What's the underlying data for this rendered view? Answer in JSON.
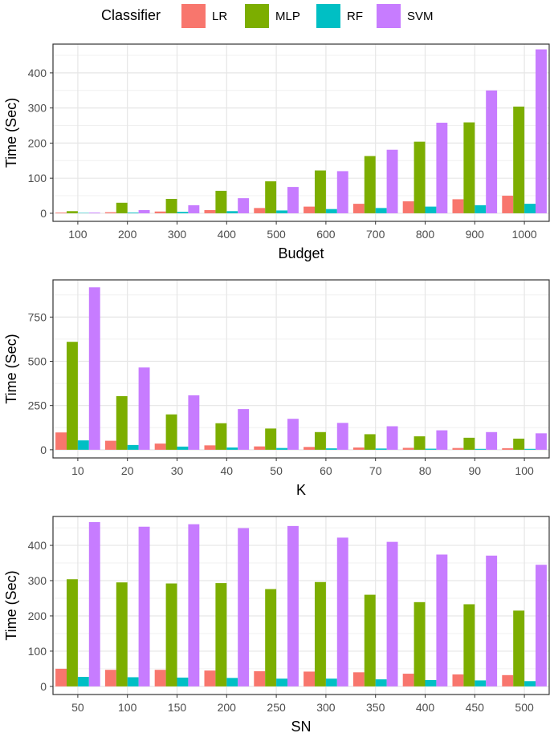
{
  "legend": {
    "title": "Classifier",
    "entries": [
      {
        "name": "LR",
        "color": "#F8766D"
      },
      {
        "name": "MLP",
        "color": "#7CAE00"
      },
      {
        "name": "RF",
        "color": "#00BFC4"
      },
      {
        "name": "SVM",
        "color": "#C77CFF"
      }
    ]
  },
  "chart_data": [
    {
      "type": "bar",
      "xlabel": "Budget",
      "ylabel": "Time (Sec)",
      "categories": [
        "100",
        "200",
        "300",
        "400",
        "500",
        "600",
        "700",
        "800",
        "900",
        "1000"
      ],
      "ylim": [
        -23,
        482
      ],
      "yticks": [
        0,
        100,
        200,
        300,
        400
      ],
      "series": [
        {
          "name": "LR",
          "values": [
            2,
            3,
            5,
            9,
            15,
            19,
            27,
            34,
            40,
            50
          ]
        },
        {
          "name": "MLP",
          "values": [
            6,
            30,
            41,
            64,
            91,
            122,
            163,
            204,
            259,
            304
          ]
        },
        {
          "name": "RF",
          "values": [
            1,
            2,
            4,
            6,
            8,
            12,
            15,
            19,
            23,
            27
          ]
        },
        {
          "name": "SVM",
          "values": [
            2,
            9,
            23,
            43,
            75,
            120,
            181,
            258,
            350,
            467
          ]
        }
      ]
    },
    {
      "type": "bar",
      "xlabel": "K",
      "ylabel": "Time (Sec)",
      "categories": [
        "10",
        "20",
        "30",
        "40",
        "50",
        "60",
        "70",
        "80",
        "90",
        "100"
      ],
      "ylim": [
        -46,
        960
      ],
      "yticks": [
        0,
        250,
        500,
        750
      ],
      "series": [
        {
          "name": "LR",
          "values": [
            98,
            51,
            35,
            25,
            19,
            16,
            13,
            11,
            10,
            9
          ]
        },
        {
          "name": "MLP",
          "values": [
            610,
            303,
            200,
            150,
            120,
            100,
            88,
            76,
            68,
            63
          ]
        },
        {
          "name": "RF",
          "values": [
            53,
            27,
            18,
            13,
            10,
            8,
            7,
            6,
            5,
            5
          ]
        },
        {
          "name": "SVM",
          "values": [
            918,
            465,
            308,
            230,
            175,
            152,
            133,
            110,
            100,
            93
          ]
        }
      ]
    },
    {
      "type": "bar",
      "xlabel": "SN",
      "ylabel": "Time (Sec)",
      "categories": [
        "50",
        "100",
        "150",
        "200",
        "250",
        "300",
        "350",
        "400",
        "450",
        "500"
      ],
      "ylim": [
        -23,
        482
      ],
      "yticks": [
        0,
        100,
        200,
        300,
        400
      ],
      "series": [
        {
          "name": "LR",
          "values": [
            50,
            47,
            47,
            45,
            43,
            42,
            40,
            36,
            34,
            32
          ]
        },
        {
          "name": "MLP",
          "values": [
            304,
            295,
            292,
            293,
            276,
            296,
            260,
            239,
            233,
            215
          ]
        },
        {
          "name": "RF",
          "values": [
            27,
            26,
            25,
            24,
            22,
            22,
            20,
            18,
            17,
            15
          ]
        },
        {
          "name": "SVM",
          "values": [
            466,
            453,
            460,
            449,
            455,
            422,
            410,
            374,
            371,
            345
          ]
        }
      ]
    }
  ]
}
